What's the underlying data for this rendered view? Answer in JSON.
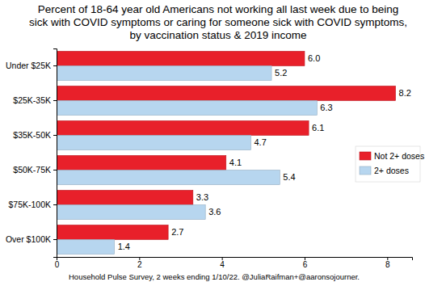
{
  "chart_data": {
    "type": "bar",
    "orientation": "horizontal",
    "title": "Percent of 18-64 year old Americans not working all last week due to being\nsick with COVID symptoms or caring for someone sick with COVID symptoms,\nby vaccination status & 2019 income",
    "source": "Household Pulse Survey, 2 weeks ending 1/10/22. @JuliaRaifman+@aaronsojourner.",
    "categories": [
      "Under $25K",
      "$25K-35K",
      "$35K-50K",
      "$50K-75K",
      "$75K-100K",
      "Over $100K"
    ],
    "series": [
      {
        "name": "Not 2+ doses",
        "color": "#e8202a",
        "values": [
          6.0,
          8.2,
          6.1,
          4.1,
          3.3,
          2.7
        ],
        "value_labels": [
          "6.0",
          "8.2",
          "6.1",
          "4.1",
          "3.3",
          "2.7"
        ]
      },
      {
        "name": "2+ doses",
        "color": "#b7d6ef",
        "values": [
          5.2,
          6.3,
          4.7,
          5.4,
          3.6,
          1.4
        ],
        "value_labels": [
          "5.2",
          "6.3",
          "4.7",
          "5.4",
          "3.6",
          "1.4"
        ]
      }
    ],
    "xlim": [
      0,
      8.6
    ],
    "xticks": [
      0,
      2,
      4,
      6,
      8
    ],
    "grid": false,
    "legend": "right",
    "data_labels": true
  }
}
